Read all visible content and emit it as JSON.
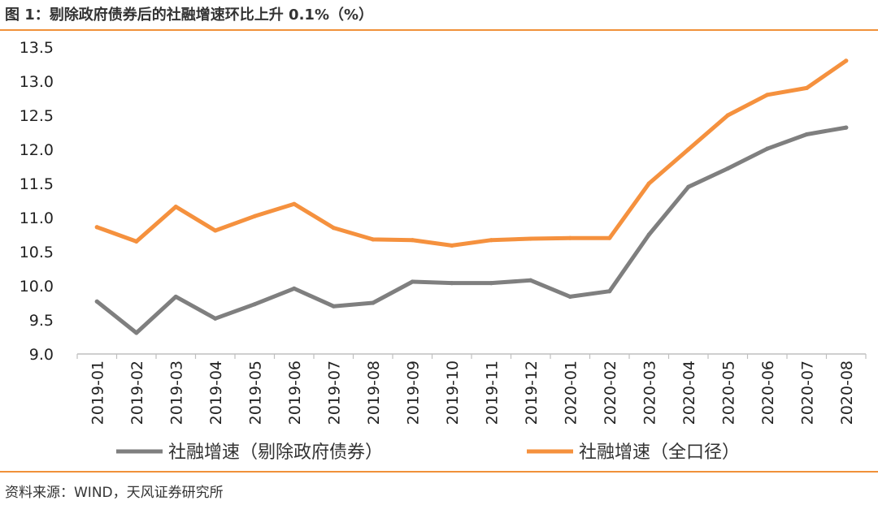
{
  "header": {
    "title": "图 1：剔除政府债券后的社融增速环比上升 0.1%（%）"
  },
  "footer": {
    "source": "资料来源：WIND，天风证券研究所"
  },
  "chart_data": {
    "type": "line",
    "title": "图 1：剔除政府债券后的社融增速环比上升 0.1%（%）",
    "xlabel": "",
    "ylabel": "",
    "categories": [
      "2019-01",
      "2019-02",
      "2019-03",
      "2019-04",
      "2019-05",
      "2019-06",
      "2019-07",
      "2019-08",
      "2019-09",
      "2019-10",
      "2019-11",
      "2019-12",
      "2020-01",
      "2020-02",
      "2020-03",
      "2020-04",
      "2020-05",
      "2020-06",
      "2020-07",
      "2020-08"
    ],
    "yticks": [
      "9.0",
      "9.5",
      "10.0",
      "10.5",
      "11.0",
      "11.5",
      "12.0",
      "12.5",
      "13.0",
      "13.5"
    ],
    "ylim": [
      9.0,
      13.5
    ],
    "grid": false,
    "legend_position": "bottom",
    "series": [
      {
        "name": "社融增速（剔除政府债券）",
        "color": "#7f7f7f",
        "values": [
          9.77,
          9.31,
          9.84,
          9.52,
          9.73,
          9.96,
          9.7,
          9.75,
          10.06,
          10.04,
          10.04,
          10.08,
          9.84,
          9.92,
          10.75,
          11.45,
          11.72,
          12.01,
          12.22,
          12.32
        ]
      },
      {
        "name": "社融增速（全口径）",
        "color": "#f5913e",
        "values": [
          10.86,
          10.65,
          11.16,
          10.81,
          11.02,
          11.2,
          10.85,
          10.68,
          10.67,
          10.59,
          10.67,
          10.69,
          10.7,
          10.7,
          11.5,
          12.0,
          12.5,
          12.8,
          12.9,
          13.3
        ]
      }
    ]
  }
}
